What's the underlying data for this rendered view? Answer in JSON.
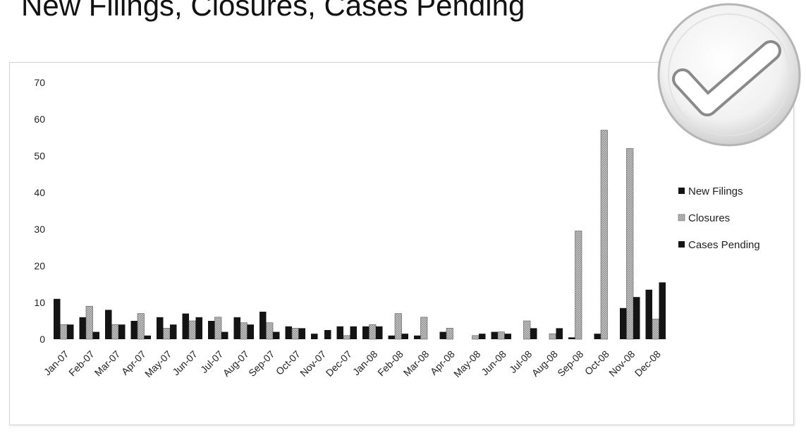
{
  "chart_data": {
    "type": "bar",
    "title": "New Filings, Closures, Cases Pending",
    "categories": [
      "Jan-07",
      "Feb-07",
      "Mar-07",
      "Apr-07",
      "May-07",
      "Jun-07",
      "Jul-07",
      "Aug-07",
      "Sep-07",
      "Oct-07",
      "Nov-07",
      "Dec-07",
      "Jan-08",
      "Feb-08",
      "Mar-08",
      "Apr-08",
      "May-08",
      "Jun-08",
      "Jul-08",
      "Aug-08",
      "Sep-08",
      "Oct-08",
      "Nov-08",
      "Dec-08"
    ],
    "ylim": [
      0,
      70
    ],
    "yticks": [
      0,
      10,
      20,
      30,
      40,
      50,
      60,
      70
    ],
    "xlabel": "",
    "ylabel": "",
    "grid": false,
    "legend_position": "right",
    "series": [
      {
        "name": "New Filings",
        "color": "#141414",
        "pattern": "solid",
        "values": [
          11,
          6,
          8,
          5,
          6,
          7,
          5,
          6,
          7.5,
          3.5,
          1.5,
          3.5,
          3.5,
          1,
          1,
          2,
          0,
          2,
          0,
          0,
          0.5,
          1.5,
          8.5,
          13.5
        ]
      },
      {
        "name": "Closures",
        "color": "#b4b4b4",
        "pattern": "hatched",
        "values": [
          4,
          9,
          4,
          7,
          3,
          5,
          6,
          4.5,
          4.5,
          3,
          0,
          1,
          4,
          7,
          6,
          3,
          1,
          2,
          5,
          1.5,
          29.5,
          57,
          52,
          5.5
        ]
      },
      {
        "name": "Cases Pending",
        "color": "#141414",
        "pattern": "solid",
        "values": [
          4,
          2,
          4,
          1,
          4,
          6,
          2,
          4,
          2,
          3,
          2.5,
          3.5,
          3.5,
          1.5,
          0,
          0,
          1.5,
          1.5,
          3,
          3,
          0,
          0,
          11.5,
          15.5
        ]
      }
    ]
  },
  "badge": {
    "icon": "checkmark-icon"
  }
}
